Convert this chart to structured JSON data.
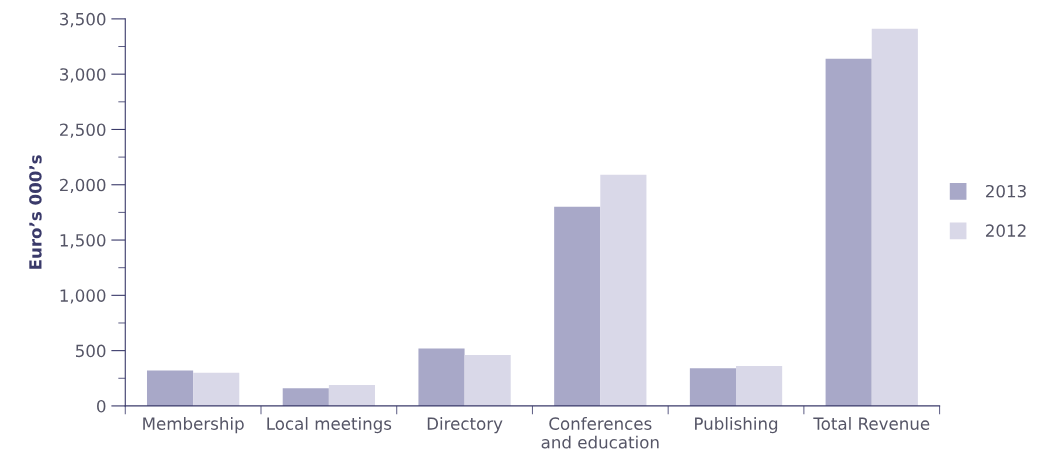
{
  "chart_data": {
    "type": "bar",
    "ylabel": "Euro’s 000’s",
    "categories": [
      "Membership",
      "Local meetings",
      "Directory",
      "Conferences\nand education",
      "Publishing",
      "Total Revenue"
    ],
    "series": [
      {
        "name": "2013",
        "color": "#a8a8c8",
        "values": [
          320,
          160,
          520,
          1800,
          340,
          3140
        ]
      },
      {
        "name": "2012",
        "color": "#d9d8e8",
        "values": [
          300,
          190,
          460,
          2090,
          360,
          3410
        ]
      }
    ],
    "ylim": [
      0,
      3500
    ],
    "yticks": [
      {
        "value": 0,
        "label": "0"
      },
      {
        "value": 500,
        "label": "500"
      },
      {
        "value": 1000,
        "label": "1,000"
      },
      {
        "value": 1500,
        "label": "1,500"
      },
      {
        "value": 2000,
        "label": "2,000"
      },
      {
        "value": 2500,
        "label": "2,500"
      },
      {
        "value": 3000,
        "label": "3,000"
      },
      {
        "value": 3500,
        "label": "3,500"
      }
    ],
    "grid": false,
    "legend": "right"
  }
}
